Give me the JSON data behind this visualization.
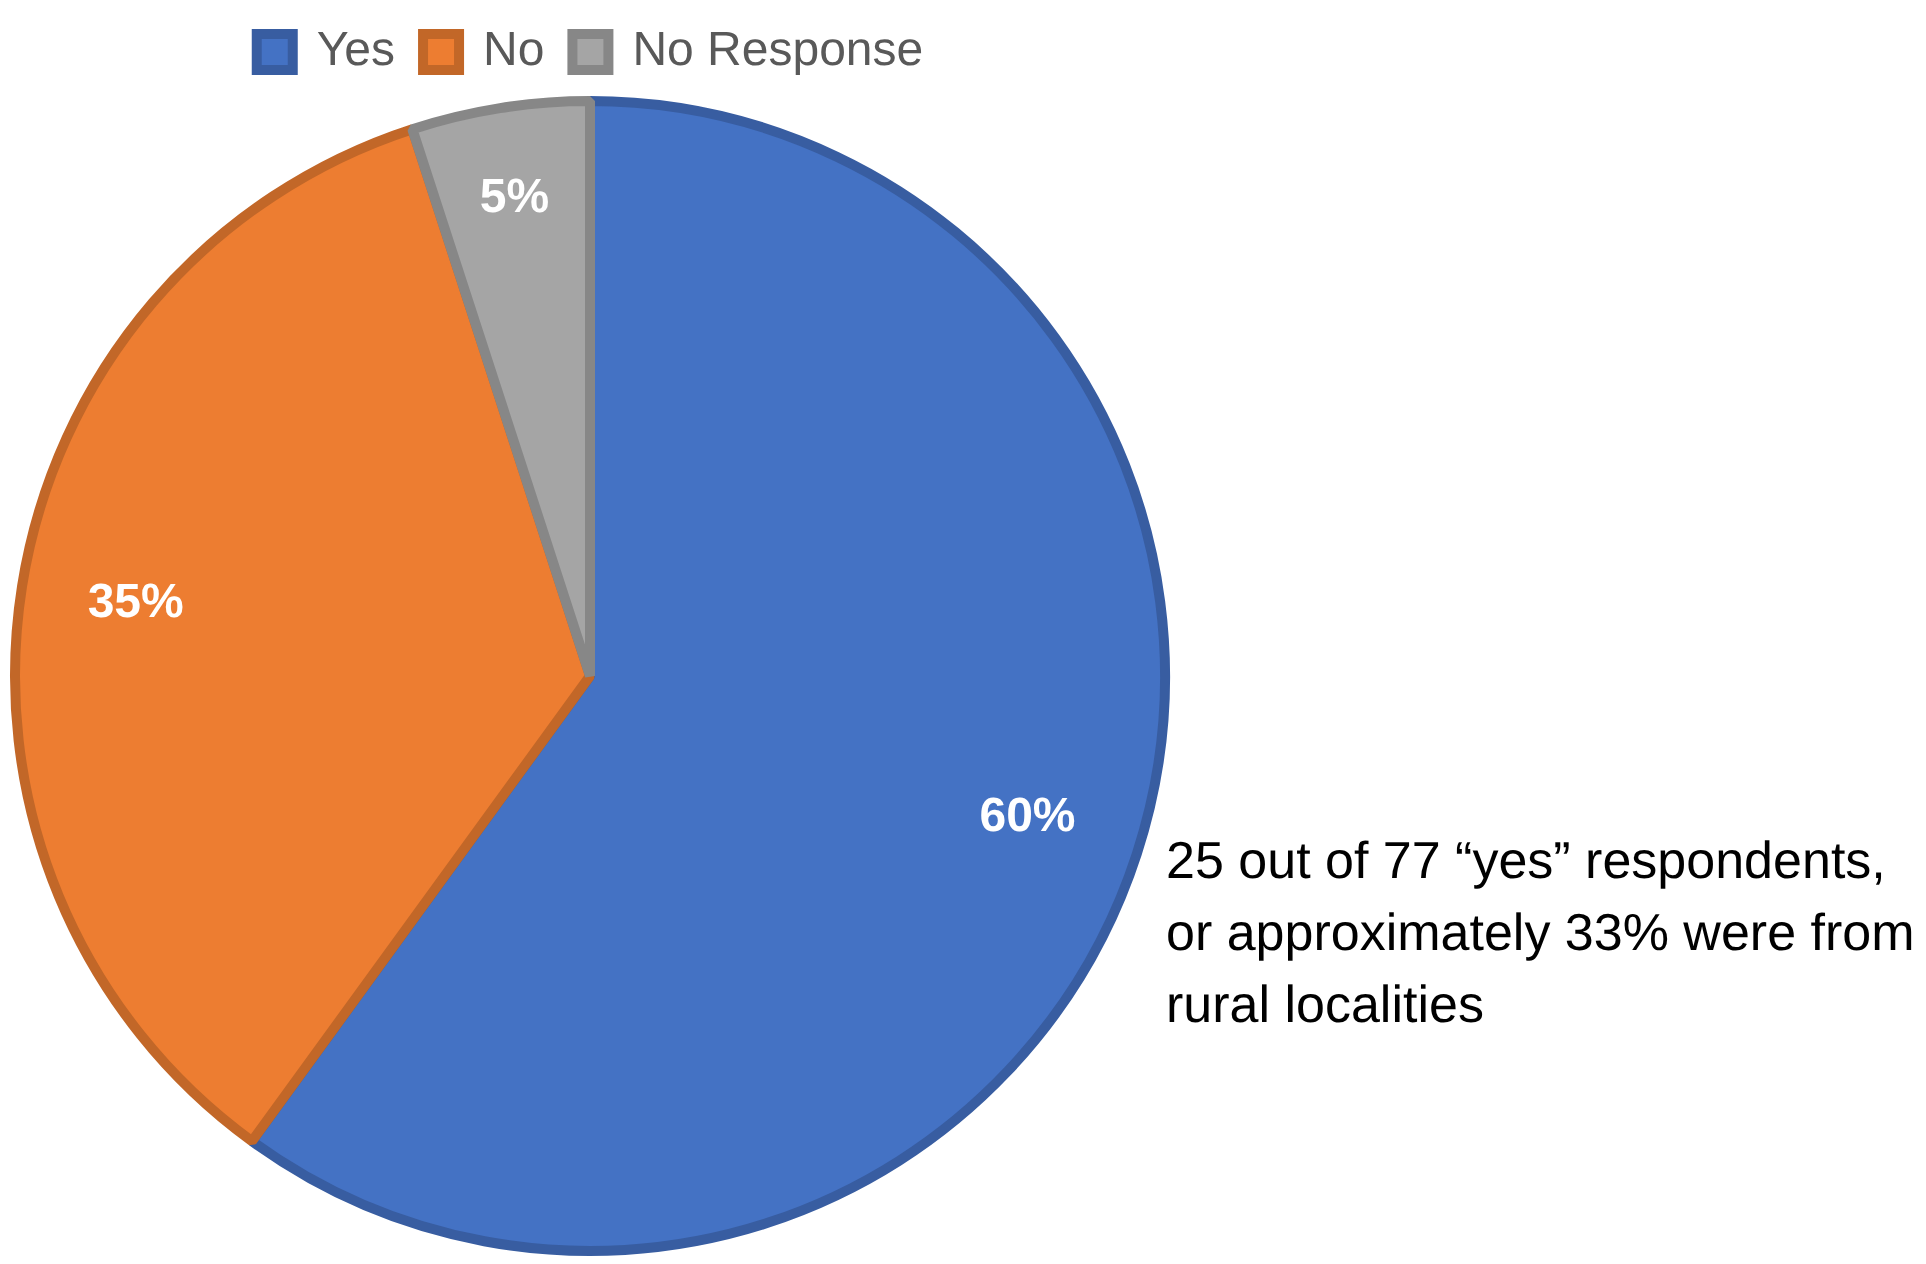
{
  "chart_data": {
    "type": "pie",
    "categories": [
      "Yes",
      "No",
      "No Response"
    ],
    "values": [
      60,
      35,
      5
    ],
    "colors": [
      "#4472c4",
      "#ed7d31",
      "#a5a5a5"
    ],
    "value_labels": [
      "60%",
      "35%",
      "5%"
    ],
    "legend": "top",
    "annotations": [
      "25 out of 77 “yes” respondents, or approximately 33% were from rural localities"
    ]
  }
}
